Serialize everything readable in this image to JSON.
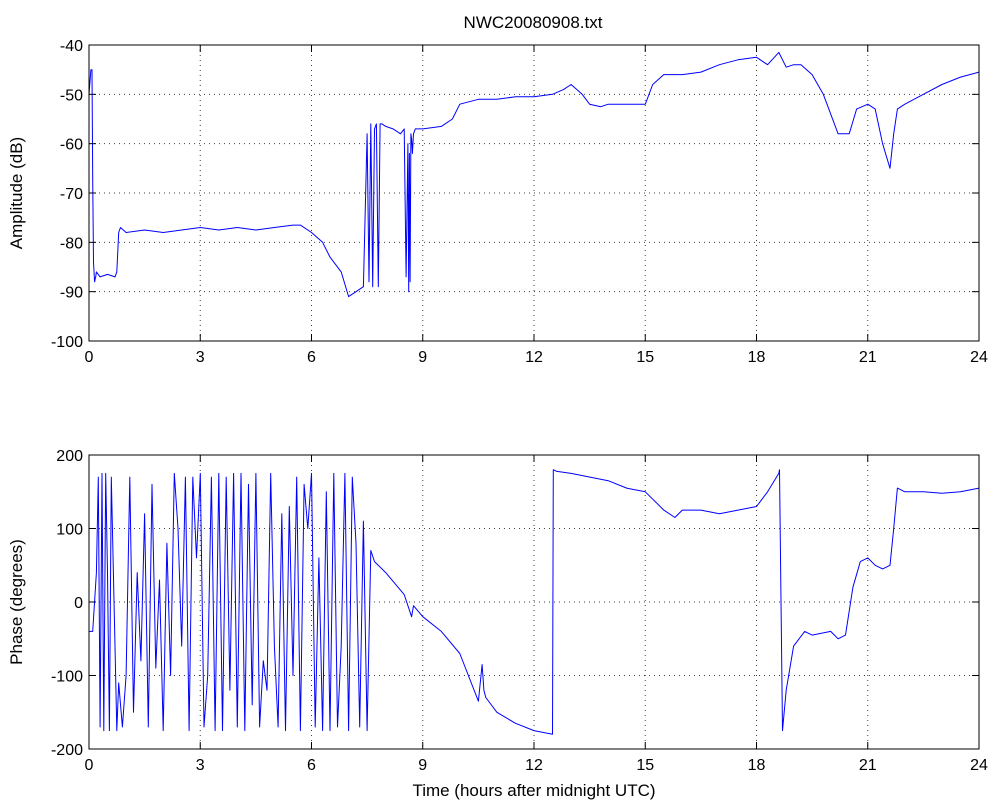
{
  "title": "NWC20080908.txt",
  "chart_data": [
    {
      "type": "line",
      "title": "NWC20080908.txt",
      "xlabel": "",
      "ylabel": "Amplitude (dB)",
      "xlim": [
        0,
        24
      ],
      "ylim": [
        -100,
        -40
      ],
      "xticks": [
        0,
        3,
        6,
        9,
        12,
        15,
        18,
        21,
        24
      ],
      "yticks": [
        -100,
        -90,
        -80,
        -70,
        -60,
        -50,
        -40
      ],
      "grid": true,
      "color": "#0000ff",
      "series": [
        {
          "x": [
            0.0,
            0.05,
            0.08,
            0.1,
            0.12,
            0.15,
            0.18,
            0.2,
            0.3,
            0.5,
            0.7,
            0.75,
            0.8,
            0.85,
            1.0,
            1.5,
            2.0,
            2.5,
            3.0,
            3.5,
            4.0,
            4.5,
            5.0,
            5.5,
            5.7,
            6.0,
            6.3,
            6.5,
            6.8,
            7.0,
            7.2,
            7.4,
            7.5,
            7.55,
            7.6,
            7.65,
            7.7,
            7.75,
            7.8,
            7.85,
            7.9,
            8.0,
            8.2,
            8.4,
            8.5,
            8.55,
            8.6,
            8.62,
            8.64,
            8.66,
            8.68,
            8.7,
            8.72,
            8.75,
            8.8,
            9.0,
            9.5,
            9.8,
            10.0,
            10.5,
            11.0,
            11.5,
            12.0,
            12.5,
            12.8,
            13.0,
            13.3,
            13.5,
            13.8,
            14.0,
            14.5,
            15.0,
            15.2,
            15.5,
            15.8,
            16.0,
            16.5,
            17.0,
            17.5,
            18.0,
            18.3,
            18.6,
            18.8,
            19.0,
            19.2,
            19.5,
            19.8,
            20.0,
            20.2,
            20.5,
            20.7,
            21.0,
            21.2,
            21.4,
            21.6,
            21.7,
            21.8,
            22.0,
            22.5,
            23.0,
            23.5,
            24.0
          ],
          "y": [
            -50,
            -45,
            -45,
            -67,
            -84,
            -88,
            -87,
            -86,
            -87,
            -86.5,
            -87,
            -86,
            -78,
            -77,
            -78,
            -77.5,
            -78,
            -77.5,
            -77,
            -77.5,
            -77,
            -77.5,
            -77,
            -76.5,
            -76.5,
            -78,
            -80,
            -83,
            -86,
            -91,
            -90,
            -89,
            -58,
            -88,
            -56,
            -89,
            -57,
            -56,
            -89,
            -56,
            -56,
            -56.5,
            -57,
            -58,
            -57,
            -87,
            -60,
            -90,
            -62,
            -88,
            -58,
            -59,
            -62,
            -58,
            -57,
            -57,
            -56.5,
            -55,
            -52,
            -51,
            -51,
            -50.5,
            -50.5,
            -50,
            -49,
            -48,
            -50,
            -52,
            -52.5,
            -52,
            -52,
            -52,
            -48,
            -46,
            -46,
            -46,
            -45.5,
            -44,
            -43,
            -42.5,
            -44,
            -41.5,
            -44.5,
            -44,
            -44,
            -46,
            -50,
            -54,
            -58,
            -58,
            -53,
            -52,
            -53,
            -60,
            -65,
            -58,
            -53,
            -52,
            -50,
            -48,
            -46.5,
            -45.5
          ]
        }
      ]
    },
    {
      "type": "line",
      "title": "",
      "xlabel": "Time (hours after midnight UTC)",
      "ylabel": "Phase (degrees)",
      "xlim": [
        0,
        24
      ],
      "ylim": [
        -200,
        200
      ],
      "xticks": [
        0,
        3,
        6,
        9,
        12,
        15,
        18,
        21,
        24
      ],
      "yticks": [
        -200,
        -100,
        0,
        100,
        200
      ],
      "grid": true,
      "color": "#0000ff",
      "series": [
        {
          "x": [
            0.0,
            0.1,
            0.2,
            0.25,
            0.3,
            0.35,
            0.4,
            0.45,
            0.5,
            0.55,
            0.6,
            0.7,
            0.75,
            0.8,
            0.9,
            1.0,
            1.1,
            1.2,
            1.3,
            1.4,
            1.5,
            1.6,
            1.7,
            1.8,
            1.9,
            2.0,
            2.1,
            2.2,
            2.3,
            2.4,
            2.5,
            2.6,
            2.7,
            2.8,
            2.9,
            3.0,
            3.1,
            3.2,
            3.3,
            3.4,
            3.5,
            3.6,
            3.7,
            3.8,
            3.9,
            4.0,
            4.1,
            4.2,
            4.3,
            4.4,
            4.5,
            4.6,
            4.7,
            4.8,
            4.9,
            5.0,
            5.1,
            5.2,
            5.3,
            5.4,
            5.5,
            5.6,
            5.7,
            5.8,
            5.9,
            6.0,
            6.1,
            6.2,
            6.3,
            6.4,
            6.5,
            6.6,
            6.7,
            6.8,
            6.9,
            7.0,
            7.1,
            7.2,
            7.3,
            7.4,
            7.5,
            7.6,
            7.7,
            8.0,
            8.5,
            8.7,
            8.75,
            9.0,
            9.5,
            10.0,
            10.5,
            10.6,
            10.65,
            10.7,
            11.0,
            11.5,
            12.0,
            12.5,
            12.52,
            12.6,
            13.0,
            14.0,
            14.5,
            15.0,
            15.5,
            15.8,
            16.0,
            16.5,
            17.0,
            17.5,
            18.0,
            18.3,
            18.6,
            18.62,
            18.7,
            18.8,
            19.0,
            19.3,
            19.5,
            20.0,
            20.2,
            20.4,
            20.6,
            20.8,
            21.0,
            21.2,
            21.4,
            21.6,
            21.7,
            21.8,
            22.0,
            22.5,
            23.0,
            23.5,
            24.0
          ],
          "y": [
            -40,
            -40,
            40,
            170,
            -170,
            175,
            -175,
            175,
            40,
            -175,
            170,
            -60,
            -175,
            -110,
            -170,
            -100,
            170,
            -150,
            40,
            -80,
            120,
            -170,
            160,
            -90,
            30,
            -175,
            80,
            -100,
            175,
            100,
            -60,
            170,
            -175,
            170,
            60,
            175,
            -170,
            -100,
            170,
            -175,
            175,
            -175,
            170,
            -120,
            175,
            -170,
            175,
            -175,
            160,
            -140,
            175,
            -170,
            -80,
            -120,
            175,
            -60,
            -170,
            120,
            -175,
            130,
            -100,
            170,
            -175,
            160,
            100,
            175,
            -170,
            60,
            -175,
            150,
            -175,
            175,
            -170,
            -60,
            175,
            -175,
            170,
            80,
            -170,
            110,
            -175,
            70,
            55,
            40,
            10,
            -20,
            -5,
            -20,
            -40,
            -70,
            -135,
            -85,
            -120,
            -130,
            -150,
            -165,
            -175,
            -180,
            180,
            178,
            175,
            165,
            155,
            150,
            125,
            115,
            125,
            125,
            120,
            125,
            130,
            150,
            175,
            180,
            -175,
            -120,
            -60,
            -40,
            -45,
            -40,
            -50,
            -45,
            20,
            55,
            60,
            50,
            45,
            50,
            100,
            155,
            150,
            150,
            148,
            150,
            155
          ]
        }
      ]
    }
  ]
}
